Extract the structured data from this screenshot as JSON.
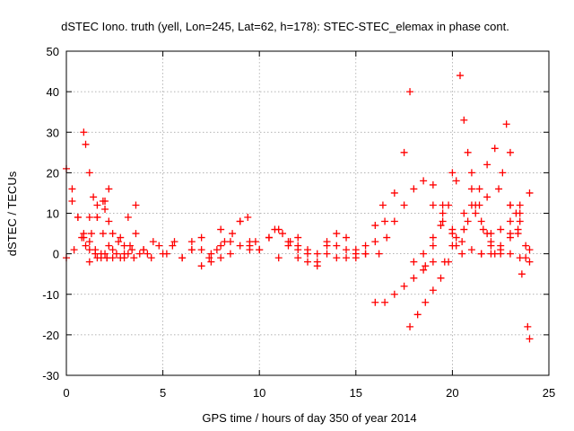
{
  "chart_data": {
    "type": "scatter",
    "title": "dSTEC Iono. truth (yell, Lon=245, Lat=62, h=178): STEC-STEC_elemax in phase cont.",
    "xlabel": "GPS time / hours of day 350 of year 2014",
    "ylabel": "dSTEC  / TECUs",
    "xlim": [
      0,
      25
    ],
    "ylim": [
      -30,
      50
    ],
    "x_ticks": [
      0,
      5,
      10,
      15,
      20,
      25
    ],
    "y_ticks": [
      -30,
      -20,
      -10,
      0,
      10,
      20,
      30,
      40,
      50
    ],
    "grid": true,
    "marker": "plus",
    "color": "#ff0000",
    "series": [
      {
        "x": [
          0.0,
          0.3,
          0.6,
          0.9,
          1.2,
          1.5,
          1.8,
          2.1
        ],
        "y": [
          21,
          16,
          9,
          4,
          1,
          0,
          -1,
          -1
        ]
      },
      {
        "x": [
          0.0,
          0.4,
          0.8,
          1.2,
          1.6,
          2.0
        ],
        "y": [
          -1,
          1,
          4,
          9,
          12,
          13
        ]
      },
      {
        "x": [
          0.3,
          0.6,
          0.9,
          1.2,
          1.5,
          1.8,
          2.1,
          2.4,
          2.8,
          3.2
        ],
        "y": [
          13,
          9,
          5,
          3,
          1,
          0,
          -1,
          -1,
          -1,
          0
        ]
      },
      {
        "x": [
          0.9,
          1.0,
          1.2,
          1.4,
          1.6,
          1.9,
          2.2,
          2.6,
          3.0,
          3.5
        ],
        "y": [
          30,
          27,
          20,
          14,
          9,
          5,
          2,
          0,
          -1,
          -1
        ]
      },
      {
        "x": [
          1.0,
          1.3,
          1.6,
          1.9,
          2.2
        ],
        "y": [
          2,
          5,
          9,
          13,
          16
        ]
      },
      {
        "x": [
          1.2,
          1.6,
          2.0,
          2.4,
          2.8,
          3.2,
          3.6
        ],
        "y": [
          -2,
          -1,
          0,
          1,
          4,
          9,
          12
        ]
      },
      {
        "x": [
          2.0,
          2.2,
          2.4,
          2.7,
          3.0,
          3.4,
          3.8,
          4.2
        ],
        "y": [
          11,
          8,
          5,
          3,
          2,
          1,
          0,
          0
        ]
      },
      {
        "x": [
          3.0,
          3.3,
          3.6,
          4.0,
          4.4,
          4.8,
          5.2,
          5.6,
          6.0,
          6.5
        ],
        "y": [
          0,
          2,
          5,
          1,
          -1,
          2,
          0,
          3,
          -1,
          1
        ]
      },
      {
        "x": [
          4.0,
          4.5,
          5.0,
          5.5,
          6.0,
          6.5,
          7.0,
          7.5,
          8.0
        ],
        "y": [
          1,
          3,
          0,
          2,
          -1,
          3,
          1,
          -2,
          2
        ]
      },
      {
        "x": [
          6.5,
          7.0,
          7.5,
          8.0,
          8.5,
          9.0,
          9.5
        ],
        "y": [
          1,
          4,
          0,
          6,
          3,
          8,
          1
        ]
      },
      {
        "x": [
          7.0,
          7.4,
          7.8,
          8.2,
          8.6,
          9.0,
          9.4,
          9.8
        ],
        "y": [
          -3,
          -1,
          1,
          3,
          5,
          8,
          9,
          3
        ]
      },
      {
        "x": [
          8.0,
          8.5,
          9.0,
          9.5,
          10.0,
          10.5,
          11.0,
          11.5,
          12.0
        ],
        "y": [
          -1,
          0,
          2,
          3,
          1,
          4,
          6,
          2,
          -1
        ]
      },
      {
        "x": [
          9.5,
          10.0,
          10.5,
          10.8,
          11.2,
          11.6,
          12.0,
          12.5,
          13.0
        ],
        "y": [
          2,
          1,
          4,
          6,
          5,
          3,
          1,
          0,
          -2
        ]
      },
      {
        "x": [
          11.0,
          11.5,
          12.0,
          12.5,
          13.0,
          13.5,
          14.0,
          14.5,
          15.0
        ],
        "y": [
          -1,
          3,
          4,
          1,
          -3,
          2,
          -1,
          4,
          0
        ]
      },
      {
        "x": [
          12.0,
          12.5,
          13.0,
          13.5,
          14.0,
          14.5,
          15.0,
          15.5
        ],
        "y": [
          2,
          -2,
          0,
          3,
          5,
          1,
          -1,
          2
        ]
      },
      {
        "x": [
          13.5,
          14.0,
          14.5,
          15.0,
          15.5,
          16.0,
          16.4
        ],
        "y": [
          0,
          2,
          -1,
          1,
          0,
          7,
          12
        ]
      },
      {
        "x": [
          15.5,
          16.0,
          16.5,
          17.0,
          17.5,
          17.8
        ],
        "y": [
          0,
          3,
          8,
          15,
          25,
          40
        ]
      },
      {
        "x": [
          16.2,
          16.6,
          17.0,
          17.5,
          18.0,
          18.5,
          19.0,
          19.5,
          20.0,
          20.5
        ],
        "y": [
          0,
          4,
          8,
          12,
          16,
          18,
          17,
          12,
          6,
          0
        ]
      },
      {
        "x": [
          16.0,
          16.5,
          17.0,
          17.5,
          18.0,
          18.5,
          19.0
        ],
        "y": [
          -12,
          -12,
          -10,
          -8,
          -6,
          -4,
          -2
        ]
      },
      {
        "x": [
          17.8,
          18.2,
          18.6,
          19.0,
          19.4,
          19.8,
          20.2,
          20.6,
          21.0
        ],
        "y": [
          -18,
          -15,
          -12,
          -9,
          -6,
          -2,
          4,
          10,
          16
        ]
      },
      {
        "x": [
          18.0,
          18.5,
          19.0,
          19.5,
          20.0,
          20.4,
          20.8,
          21.2,
          21.6
        ],
        "y": [
          -2,
          0,
          4,
          10,
          20,
          44,
          25,
          12,
          6
        ]
      },
      {
        "x": [
          18.6,
          19.0,
          19.4,
          19.8,
          20.2,
          20.6,
          21.0,
          21.4,
          21.8,
          22.2
        ],
        "y": [
          -3,
          2,
          7,
          12,
          18,
          33,
          20,
          12,
          5,
          0
        ]
      },
      {
        "x": [
          19.0,
          19.5,
          20.0,
          20.5,
          21.0,
          21.5,
          22.0,
          22.5,
          23.0,
          23.5
        ],
        "y": [
          12,
          8,
          5,
          3,
          1,
          0,
          0,
          1,
          5,
          10
        ]
      },
      {
        "x": [
          19.6,
          20.2,
          20.8,
          21.4,
          21.8,
          22.2,
          22.6,
          23.0,
          23.4,
          23.8
        ],
        "y": [
          -2,
          2,
          8,
          16,
          22,
          26,
          20,
          12,
          5,
          -1
        ]
      },
      {
        "x": [
          20.0,
          20.6,
          21.2,
          21.8,
          22.4,
          23.0,
          23.4,
          23.8
        ],
        "y": [
          2,
          6,
          10,
          14,
          16,
          12,
          6,
          2
        ]
      },
      {
        "x": [
          21.0,
          21.5,
          22.0,
          22.5,
          23.0,
          23.5,
          24.0
        ],
        "y": [
          12,
          8,
          5,
          2,
          0,
          -1,
          -2
        ]
      },
      {
        "x": [
          22.8,
          23.0,
          23.3,
          23.6,
          23.9,
          24.0
        ],
        "y": [
          32,
          25,
          10,
          -5,
          -18,
          -21
        ]
      },
      {
        "x": [
          21.5,
          22.0,
          22.5,
          23.0,
          23.5,
          24.0
        ],
        "y": [
          0,
          3,
          6,
          8,
          12,
          15
        ]
      },
      {
        "x": [
          22.0,
          22.5,
          23.0,
          23.5,
          24.0
        ],
        "y": [
          2,
          0,
          4,
          8,
          1
        ]
      }
    ]
  }
}
